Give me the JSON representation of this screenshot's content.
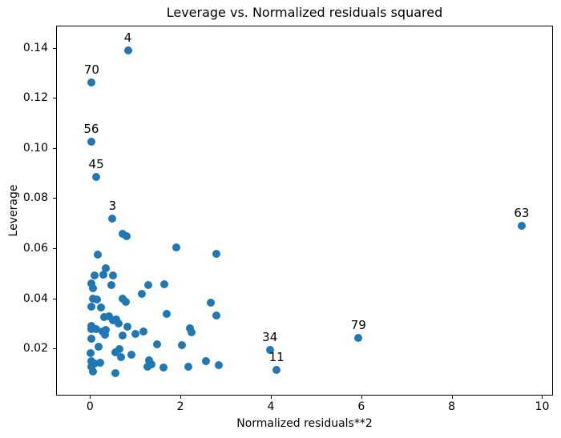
{
  "chart_data": {
    "type": "scatter",
    "title": "Leverage vs. Normalized residuals squared",
    "xlabel": "Normalized residuals**2",
    "ylabel": "Leverage",
    "xlim": [
      -0.75,
      10.24
    ],
    "ylim": [
      0.0012,
      0.1488
    ],
    "xticks": [
      0,
      2,
      4,
      6,
      8,
      10
    ],
    "yticks": [
      0.02,
      0.04,
      0.06,
      0.08,
      0.1,
      0.12,
      0.14
    ],
    "grid": false,
    "marker_color": "#1f77b4",
    "text_color": "#000000",
    "background_color": "#ffffff",
    "labeled_points": [
      {
        "label": "4",
        "x": 0.82,
        "y": 0.1393
      },
      {
        "label": "70",
        "x": 0.02,
        "y": 0.1263
      },
      {
        "label": "56",
        "x": 0.01,
        "y": 0.1028
      },
      {
        "label": "45",
        "x": 0.12,
        "y": 0.0886
      },
      {
        "label": "3",
        "x": 0.48,
        "y": 0.0722
      },
      {
        "label": "63",
        "x": 9.53,
        "y": 0.0692
      },
      {
        "label": "79",
        "x": 5.92,
        "y": 0.0245
      },
      {
        "label": "34",
        "x": 3.96,
        "y": 0.0196
      },
      {
        "label": "11",
        "x": 4.11,
        "y": 0.0117
      }
    ],
    "points": [
      [
        0.7,
        0.066
      ],
      [
        0.79,
        0.065
      ],
      [
        0.15,
        0.0577
      ],
      [
        0.33,
        0.0524
      ],
      [
        0.08,
        0.0494
      ],
      [
        0.28,
        0.0497
      ],
      [
        0.49,
        0.0493
      ],
      [
        0.46,
        0.0456
      ],
      [
        0.01,
        0.0462
      ],
      [
        0.04,
        0.0444
      ],
      [
        1.27,
        0.0457
      ],
      [
        1.62,
        0.0459
      ],
      [
        1.13,
        0.0421
      ],
      [
        0.7,
        0.0401
      ],
      [
        0.77,
        0.039
      ],
      [
        0.05,
        0.0403
      ],
      [
        0.14,
        0.0397
      ],
      [
        0.01,
        0.037
      ],
      [
        0.22,
        0.0367
      ],
      [
        1.67,
        0.0341
      ],
      [
        0.3,
        0.0327
      ],
      [
        0.41,
        0.0333
      ],
      [
        0.56,
        0.0319
      ],
      [
        0.49,
        0.0315
      ],
      [
        0.62,
        0.0303
      ],
      [
        0.81,
        0.0289
      ],
      [
        1.17,
        0.0272
      ],
      [
        0.005,
        0.0293
      ],
      [
        0.12,
        0.028
      ],
      [
        0.26,
        0.0272
      ],
      [
        0.34,
        0.0278
      ],
      [
        0.01,
        0.028
      ],
      [
        0.01,
        0.0242
      ],
      [
        0.31,
        0.0257
      ],
      [
        0.18,
        0.0211
      ],
      [
        0.7,
        0.0254
      ],
      [
        0.99,
        0.0261
      ],
      [
        1.47,
        0.0219
      ],
      [
        2.02,
        0.0216
      ],
      [
        2.19,
        0.0285
      ],
      [
        2.22,
        0.0269
      ],
      [
        1.9,
        0.0606
      ],
      [
        2.78,
        0.058
      ],
      [
        2.65,
        0.0385
      ],
      [
        2.77,
        0.0335
      ],
      [
        0.55,
        0.0188
      ],
      [
        0.64,
        0.0199
      ],
      [
        0.66,
        0.017
      ],
      [
        0.89,
        0.0178
      ],
      [
        1.29,
        0.0157
      ],
      [
        1.35,
        0.0141
      ],
      [
        1.26,
        0.0131
      ],
      [
        1.61,
        0.0127
      ],
      [
        0.0,
        0.0184
      ],
      [
        0.08,
        0.0142
      ],
      [
        0.2,
        0.0147
      ],
      [
        0.005,
        0.0152
      ],
      [
        0.005,
        0.0131
      ],
      [
        0.04,
        0.0112
      ],
      [
        0.55,
        0.0106
      ],
      [
        2.16,
        0.0129
      ],
      [
        2.55,
        0.0152
      ],
      [
        2.83,
        0.0136
      ]
    ]
  }
}
